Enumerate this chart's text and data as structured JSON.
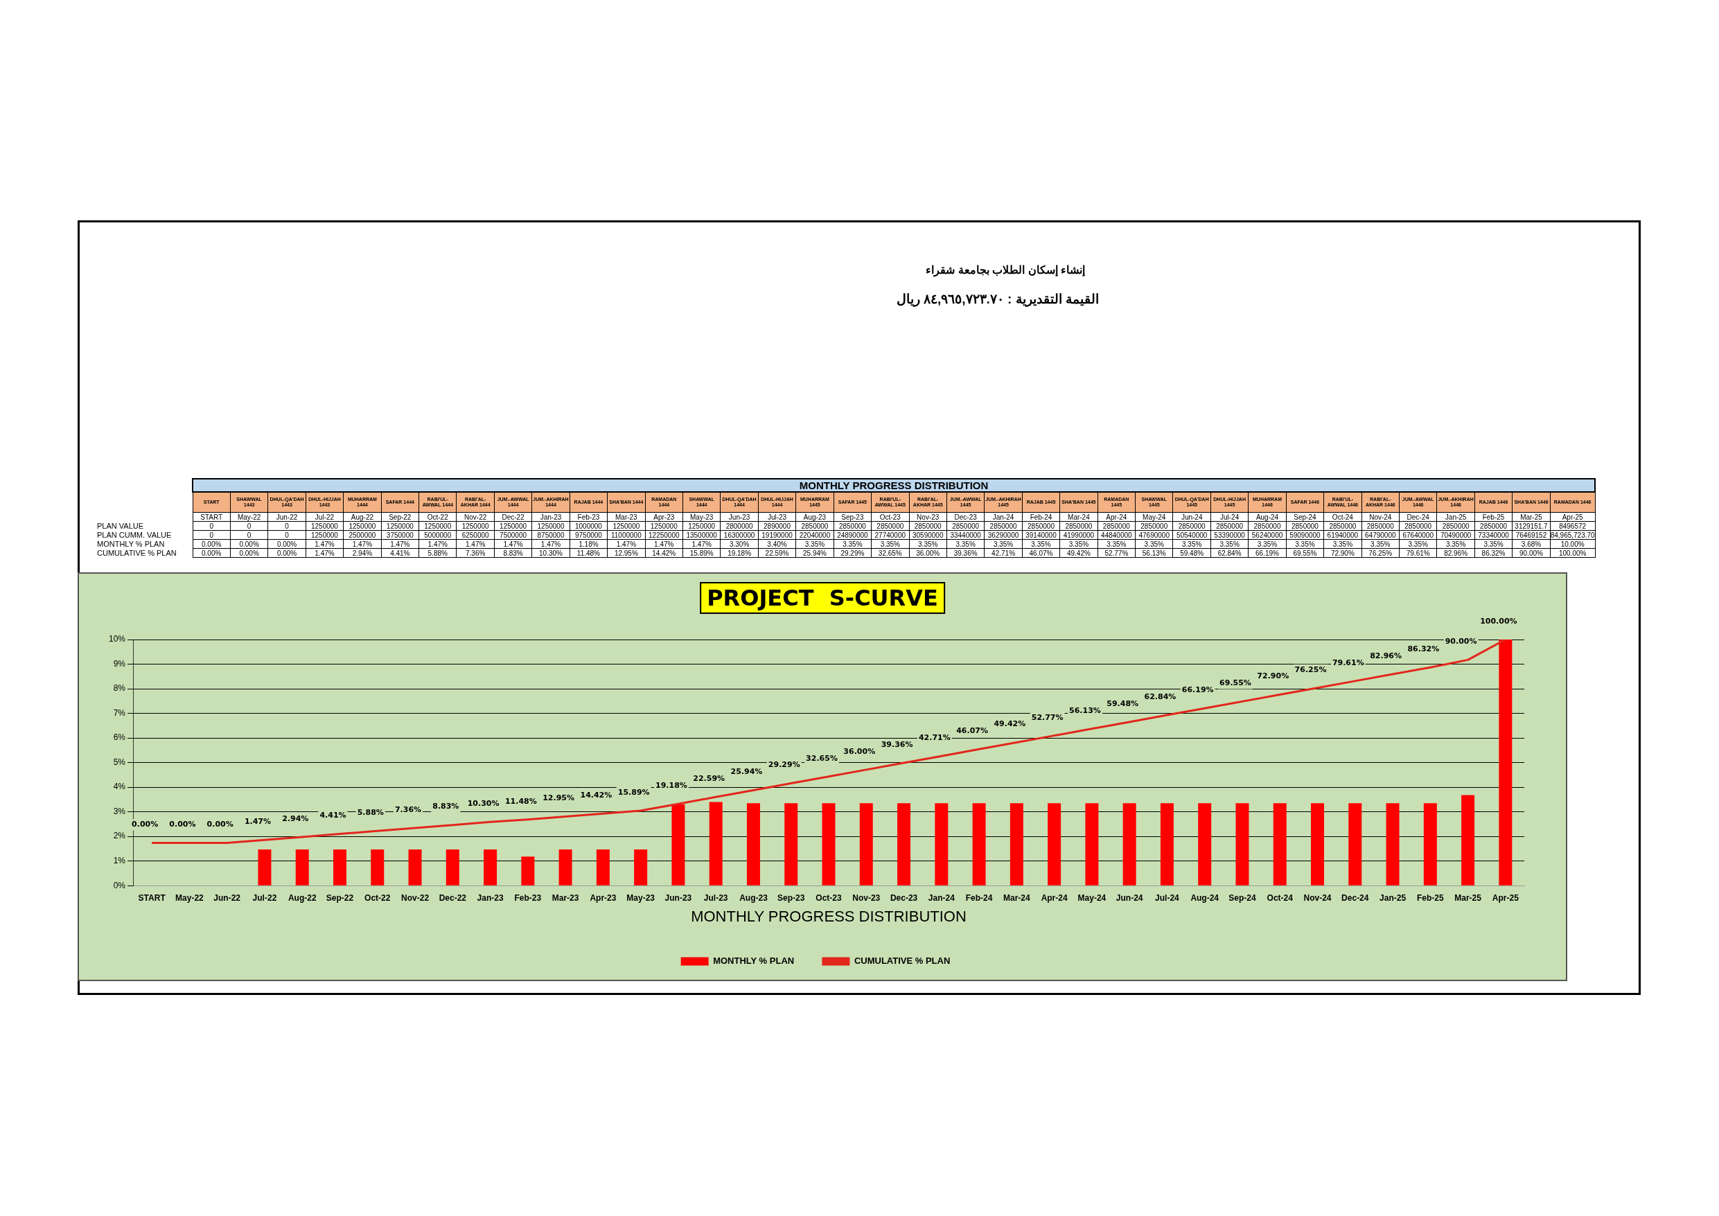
{
  "chart_data": [
    {
      "type": "other",
      "title": "MONTHLY PROGRESS DISTRIBUTION",
      "annotations": [
        "إنشاء  إسكان الطلاب بجامعة شقراء",
        "القيمة التقديرية :  ٨٤,٩٦٥,٧٢٣.٧٠ ريال"
      ],
      "categories": [
        "START",
        "SHAWWAL 1443",
        "DHUL-QA'DAH 1443",
        "DHUL-HIJJAH 1443",
        "MUHARRAM 1444",
        "SAFAR 1444",
        "RABI'UL-AWWAL 1444",
        "RABI'AL-AKHAR 1444",
        "JUM.-AWWAL 1444",
        "JUM.-AKHIRAH 1444",
        "RAJAB 1444",
        "SHA'BAN 1444",
        "RAMADAN 1444",
        "SHAWWAL 1444",
        "DHUL-QA'DAH 1444",
        "DHUL-HIJJAH 1444",
        "MUHARRAM 1445",
        "SAFAR 1445",
        "RABI'UL-AWWAL 1445",
        "RABI'AL-AKHAR 1445",
        "JUM.-AWWAL 1445",
        "JUM.-AKHIRAH 1445",
        "RAJAB 1445",
        "SHA'BAN 1445",
        "RAMADAN 1445",
        "SHAWWAL 1445",
        "DHUL-QA'DAH 1445",
        "DHUL-HIJJAH 1445",
        "MUHARRAM 1446",
        "SAFAR 1446",
        "RABI'UL-AWWAL 1446",
        "RABI'AL-AKHAR 1446",
        "JUM.-AWWAL 1446",
        "JUM.-AKHIRAH 1446",
        "RAJAB 1446",
        "SHA'BAN 1446",
        "RAMADAN 1446"
      ],
      "series": [
        {
          "values": [
            null,
            null,
            null,
            null,
            null,
            null,
            null,
            null,
            null,
            null,
            null,
            null,
            null,
            null,
            null,
            null,
            null,
            null,
            null,
            null,
            null,
            null,
            null,
            null,
            null,
            null,
            null,
            null,
            null,
            null,
            null,
            null,
            null,
            null,
            null,
            null,
            null
          ],
          "value_labels": [
            "START",
            "May-22",
            "Jun-22",
            "Jul-22",
            "Aug-22",
            "Sep-22",
            "Oct-22",
            "Nov-22",
            "Dec-22",
            "Jan-23",
            "Feb-23",
            "Mar-23",
            "Apr-23",
            "May-23",
            "Jun-23",
            "Jul-23",
            "Aug-23",
            "Sep-23",
            "Oct-23",
            "Nov-23",
            "Dec-23",
            "Jan-24",
            "Feb-24",
            "Mar-24",
            "Apr-24",
            "May-24",
            "Jun-24",
            "Jul-24",
            "Aug-24",
            "Sep-24",
            "Oct-24",
            "Nov-24",
            "Dec-24",
            "Jan-25",
            "Feb-25",
            "Mar-25",
            "Apr-25"
          ]
        },
        {
          "name": "PLAN VALUE",
          "values": [
            0,
            0,
            0,
            1250000,
            1250000,
            1250000,
            1250000,
            1250000,
            1250000,
            1250000,
            1000000,
            1250000,
            1250000,
            1250000,
            2800000,
            2890000,
            2850000,
            2850000,
            2850000,
            2850000,
            2850000,
            2850000,
            2850000,
            2850000,
            2850000,
            2850000,
            2850000,
            2850000,
            2850000,
            2850000,
            2850000,
            2850000,
            2850000,
            2850000,
            2850000,
            3129151.7,
            8496572
          ],
          "value_labels": [
            "0",
            "0",
            "0",
            "1250000",
            "1250000",
            "1250000",
            "1250000",
            "1250000",
            "1250000",
            "1250000",
            "1000000",
            "1250000",
            "1250000",
            "1250000",
            "2800000",
            "2890000",
            "2850000",
            "2850000",
            "2850000",
            "2850000",
            "2850000",
            "2850000",
            "2850000",
            "2850000",
            "2850000",
            "2850000",
            "2850000",
            "2850000",
            "2850000",
            "2850000",
            "2850000",
            "2850000",
            "2850000",
            "2850000",
            "2850000",
            "3129151.7",
            "8496572"
          ]
        },
        {
          "name": "PLAN CUMM. VALUE",
          "values": [
            0,
            0,
            0,
            1250000,
            2500000,
            3750000,
            5000000,
            6250000,
            7500000,
            8750000,
            9750000,
            11000000,
            12250000,
            13500000,
            16300000,
            19190000,
            22040000,
            24890000,
            27740000,
            30590000,
            33440000,
            36290000,
            39140000,
            41990000,
            44840000,
            47690000,
            50540000,
            53390000,
            56240000,
            59090000,
            61940000,
            64790000,
            67640000,
            70490000,
            73340000,
            76469152,
            84965723.7
          ],
          "value_labels": [
            "0",
            "0",
            "0",
            "1250000",
            "2500000",
            "3750000",
            "5000000",
            "6250000",
            "7500000",
            "8750000",
            "9750000",
            "11000000",
            "12250000",
            "13500000",
            "16300000",
            "19190000",
            "22040000",
            "24890000",
            "27740000",
            "30590000",
            "33440000",
            "36290000",
            "39140000",
            "41990000",
            "44840000",
            "47690000",
            "50540000",
            "53390000",
            "56240000",
            "59090000",
            "61940000",
            "64790000",
            "67640000",
            "70490000",
            "73340000",
            "76469152",
            "84,965,723.70"
          ]
        },
        {
          "name": "MONTHLY % PLAN",
          "values": [
            0,
            0,
            0,
            1.47,
            1.47,
            1.47,
            1.47,
            1.47,
            1.47,
            1.47,
            1.18,
            1.47,
            1.47,
            1.47,
            3.3,
            3.4,
            3.35,
            3.35,
            3.35,
            3.35,
            3.35,
            3.35,
            3.35,
            3.35,
            3.35,
            3.35,
            3.35,
            3.35,
            3.35,
            3.35,
            3.35,
            3.35,
            3.35,
            3.35,
            3.35,
            3.68,
            10.0
          ],
          "value_labels": [
            "0.00%",
            "0.00%",
            "0.00%",
            "1.47%",
            "1.47%",
            "1.47%",
            "1.47%",
            "1.47%",
            "1.47%",
            "1.47%",
            "1.18%",
            "1.47%",
            "1.47%",
            "1.47%",
            "3.30%",
            "3.40%",
            "3.35%",
            "3.35%",
            "3.35%",
            "3.35%",
            "3.35%",
            "3.35%",
            "3.35%",
            "3.35%",
            "3.35%",
            "3.35%",
            "3.35%",
            "3.35%",
            "3.35%",
            "3.35%",
            "3.35%",
            "3.35%",
            "3.35%",
            "3.35%",
            "3.35%",
            "3.68%",
            "10.00%"
          ]
        },
        {
          "name": "CUMULATIVE % PLAN",
          "values": [
            0,
            0,
            0,
            1.47,
            2.94,
            4.41,
            5.88,
            7.36,
            8.83,
            10.3,
            11.48,
            12.95,
            14.42,
            15.89,
            19.18,
            22.59,
            25.94,
            29.29,
            32.65,
            36.0,
            39.36,
            42.71,
            46.07,
            49.42,
            52.77,
            56.13,
            59.48,
            62.84,
            66.19,
            69.55,
            72.9,
            76.25,
            79.61,
            82.96,
            86.32,
            90.0,
            100.0
          ],
          "value_labels": [
            "0.00%",
            "0.00%",
            "0.00%",
            "1.47%",
            "2.94%",
            "4.41%",
            "5.88%",
            "7.36%",
            "8.83%",
            "10.30%",
            "11.48%",
            "12.95%",
            "14.42%",
            "15.89%",
            "19.18%",
            "22.59%",
            "25.94%",
            "29.29%",
            "32.65%",
            "36.00%",
            "39.36%",
            "42.71%",
            "46.07%",
            "49.42%",
            "52.77%",
            "56.13%",
            "59.48%",
            "62.84%",
            "66.19%",
            "69.55%",
            "72.90%",
            "76.25%",
            "79.61%",
            "82.96%",
            "86.32%",
            "90.00%",
            "100.00%"
          ]
        }
      ]
    },
    {
      "type": "bar",
      "title": "PROJECT  S-CURVE",
      "xlabel": "MONTHLY PROGRESS DISTRIBUTION",
      "categories": [
        "START",
        "May-22",
        "Jun-22",
        "Jul-22",
        "Aug-22",
        "Sep-22",
        "Oct-22",
        "Nov-22",
        "Dec-22",
        "Jan-23",
        "Feb-23",
        "Mar-23",
        "Apr-23",
        "May-23",
        "Jun-23",
        "Jul-23",
        "Aug-23",
        "Sep-23",
        "Oct-23",
        "Nov-23",
        "Dec-23",
        "Jan-24",
        "Feb-24",
        "Mar-24",
        "Apr-24",
        "May-24",
        "Jun-24",
        "Jul-24",
        "Aug-24",
        "Sep-24",
        "Oct-24",
        "Nov-24",
        "Dec-24",
        "Jan-25",
        "Feb-25",
        "Mar-25",
        "Apr-25"
      ],
      "ylim": [
        0,
        10
      ],
      "yticks": [
        {
          "value": 0,
          "label": "0%"
        },
        {
          "value": 1,
          "label": "1%"
        },
        {
          "value": 2,
          "label": "2%"
        },
        {
          "value": 3,
          "label": "3%"
        },
        {
          "value": 4,
          "label": "4%"
        },
        {
          "value": 5,
          "label": "5%"
        },
        {
          "value": 6,
          "label": "6%"
        },
        {
          "value": 7,
          "label": "7%"
        },
        {
          "value": 8,
          "label": "8%"
        },
        {
          "value": 9,
          "label": "9%"
        },
        {
          "value": 10,
          "label": "10%"
        }
      ],
      "y2lim": [
        -21,
        100
      ],
      "grid": "y",
      "legend": "bottom",
      "series": [
        {
          "type": "bar",
          "name": "MONTHLY % PLAN",
          "color": "#ff0000",
          "values": [
            0,
            0,
            0,
            1.47,
            1.47,
            1.47,
            1.47,
            1.47,
            1.47,
            1.47,
            1.18,
            1.47,
            1.47,
            1.47,
            3.3,
            3.4,
            3.35,
            3.35,
            3.35,
            3.35,
            3.35,
            3.35,
            3.35,
            3.35,
            3.35,
            3.35,
            3.35,
            3.35,
            3.35,
            3.35,
            3.35,
            3.35,
            3.35,
            3.35,
            3.35,
            3.68,
            10.0
          ]
        },
        {
          "type": "line",
          "axis": "y2",
          "name": "CUMULATIVE % PLAN",
          "color": "#e3261c",
          "values": [
            0,
            0,
            0,
            1.47,
            2.94,
            4.41,
            5.88,
            7.36,
            8.83,
            10.3,
            11.48,
            12.95,
            14.42,
            15.89,
            19.18,
            22.59,
            25.94,
            29.29,
            32.65,
            36.0,
            39.36,
            42.71,
            46.07,
            49.42,
            52.77,
            56.13,
            59.48,
            62.84,
            66.19,
            69.55,
            72.9,
            76.25,
            79.61,
            82.96,
            86.32,
            90.0,
            100.0
          ],
          "value_labels": [
            "0.00%",
            "0.00%",
            "0.00%",
            "1.47%",
            "2.94%",
            "4.41%",
            "5.88%",
            "7.36%",
            "8.83%",
            "10.30%",
            "11.48%",
            "12.95%",
            "14.42%",
            "15.89%",
            "19.18%",
            "22.59%",
            "25.94%",
            "29.29%",
            "32.65%",
            "36.00%",
            "39.36%",
            "42.71%",
            "46.07%",
            "49.42%",
            "52.77%",
            "56.13%",
            "59.48%",
            "62.84%",
            "66.19%",
            "69.55%",
            "72.90%",
            "76.25%",
            "79.61%",
            "82.96%",
            "86.32%",
            "90.00%",
            "100.00%"
          ]
        }
      ]
    }
  ]
}
